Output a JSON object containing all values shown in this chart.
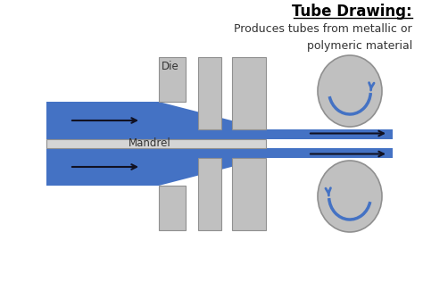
{
  "title": "Tube Drawing:",
  "subtitle": "Produces tubes from metallic or\npolymeric material",
  "title_fontsize": 12,
  "subtitle_fontsize": 9,
  "bg_color": "#ffffff",
  "blue": "#4472C4",
  "gray_dark": "#909090",
  "gray_light": "#C0C0C0",
  "mandrel_fill": "#D5D5D5",
  "arrow_color": "#111122",
  "die_label": "Die",
  "mandrel_label": "Mandrel",
  "fig_w": 4.74,
  "fig_h": 3.16,
  "dpi": 100
}
